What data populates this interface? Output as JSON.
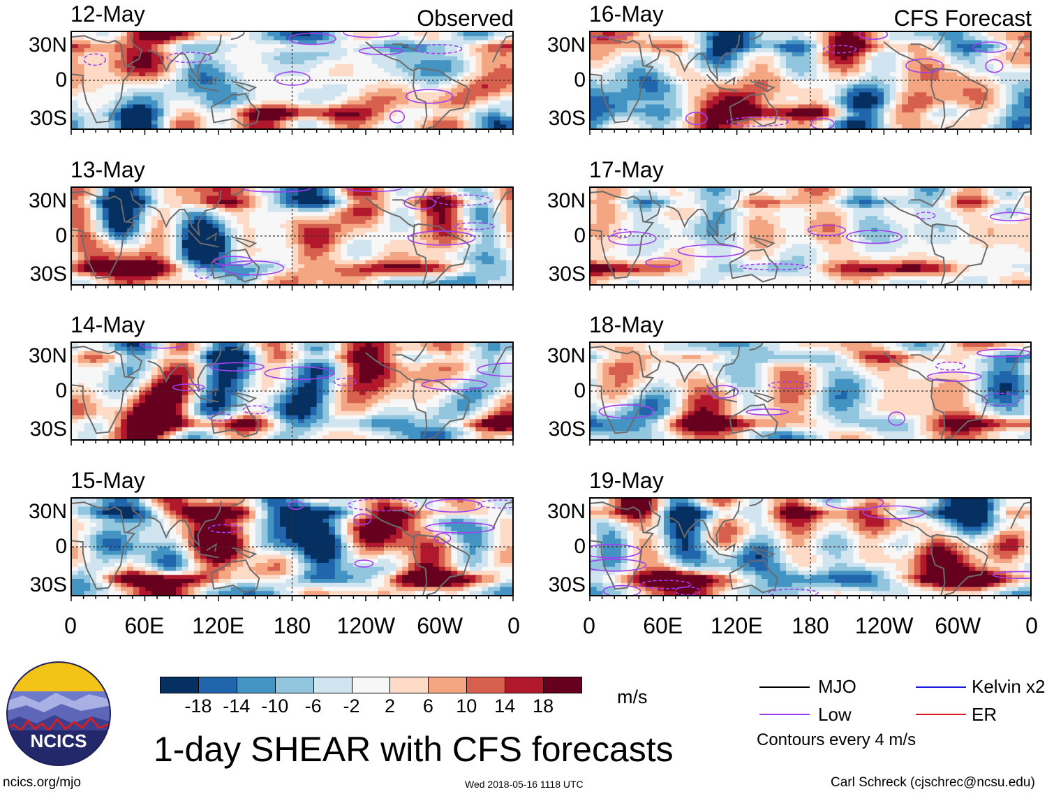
{
  "title": "1-day SHEAR with CFS forecasts",
  "columns": {
    "left": "Observed",
    "right": "CFS Forecast"
  },
  "panels_left": [
    "12-May",
    "13-May",
    "14-May",
    "15-May"
  ],
  "panels_right": [
    "16-May",
    "17-May",
    "18-May",
    "19-May"
  ],
  "lat_labels": [
    "30N",
    "0",
    "30S"
  ],
  "lon_labels": [
    "0",
    "60E",
    "120E",
    "180",
    "120W",
    "60W",
    "0"
  ],
  "colorbar": {
    "unit": "m/s",
    "ticks": [
      "-18",
      "-14",
      "-10",
      "-6",
      "-2",
      "2",
      "6",
      "10",
      "14",
      "18"
    ],
    "colors": [
      "#053061",
      "#2166ac",
      "#4393c3",
      "#92c5de",
      "#d1e5f0",
      "#f7f7f7",
      "#fddbc7",
      "#f4a582",
      "#d6604d",
      "#b2182b",
      "#67001f"
    ]
  },
  "legend": {
    "items": [
      {
        "label": "MJO",
        "color": "#000000"
      },
      {
        "label": "Kelvin x2",
        "color": "#1a1adb"
      },
      {
        "label": "Low",
        "color": "#a040f0"
      },
      {
        "label": "ER",
        "color": "#d81b1b"
      }
    ],
    "note": "Contours every 4 m/s"
  },
  "logo_text": "NCICS",
  "footer": {
    "left": "ncics.org/mjo",
    "center": "Wed 2018-05-16 1118 UTC",
    "right": "Carl Schreck (cjschrec@ncsu.edu)"
  },
  "chart_data": {
    "type": "heatmap",
    "variable": "1-day vertical wind shear",
    "unit": "m/s",
    "xlim": [
      0,
      360
    ],
    "ylim": [
      -40,
      40
    ],
    "x_ticks": [
      "0",
      "60E",
      "120E",
      "180",
      "120W",
      "60W",
      "0"
    ],
    "y_ticks": [
      "30N",
      "0",
      "30S"
    ],
    "levels": [
      -18,
      -14,
      -10,
      -6,
      -2,
      2,
      6,
      10,
      14,
      18
    ],
    "panels": [
      {
        "date": "12-May",
        "source": "Observed"
      },
      {
        "date": "13-May",
        "source": "Observed"
      },
      {
        "date": "14-May",
        "source": "Observed"
      },
      {
        "date": "15-May",
        "source": "Observed"
      },
      {
        "date": "16-May",
        "source": "CFS Forecast"
      },
      {
        "date": "17-May",
        "source": "CFS Forecast"
      },
      {
        "date": "18-May",
        "source": "CFS Forecast"
      },
      {
        "date": "19-May",
        "source": "CFS Forecast"
      }
    ]
  }
}
